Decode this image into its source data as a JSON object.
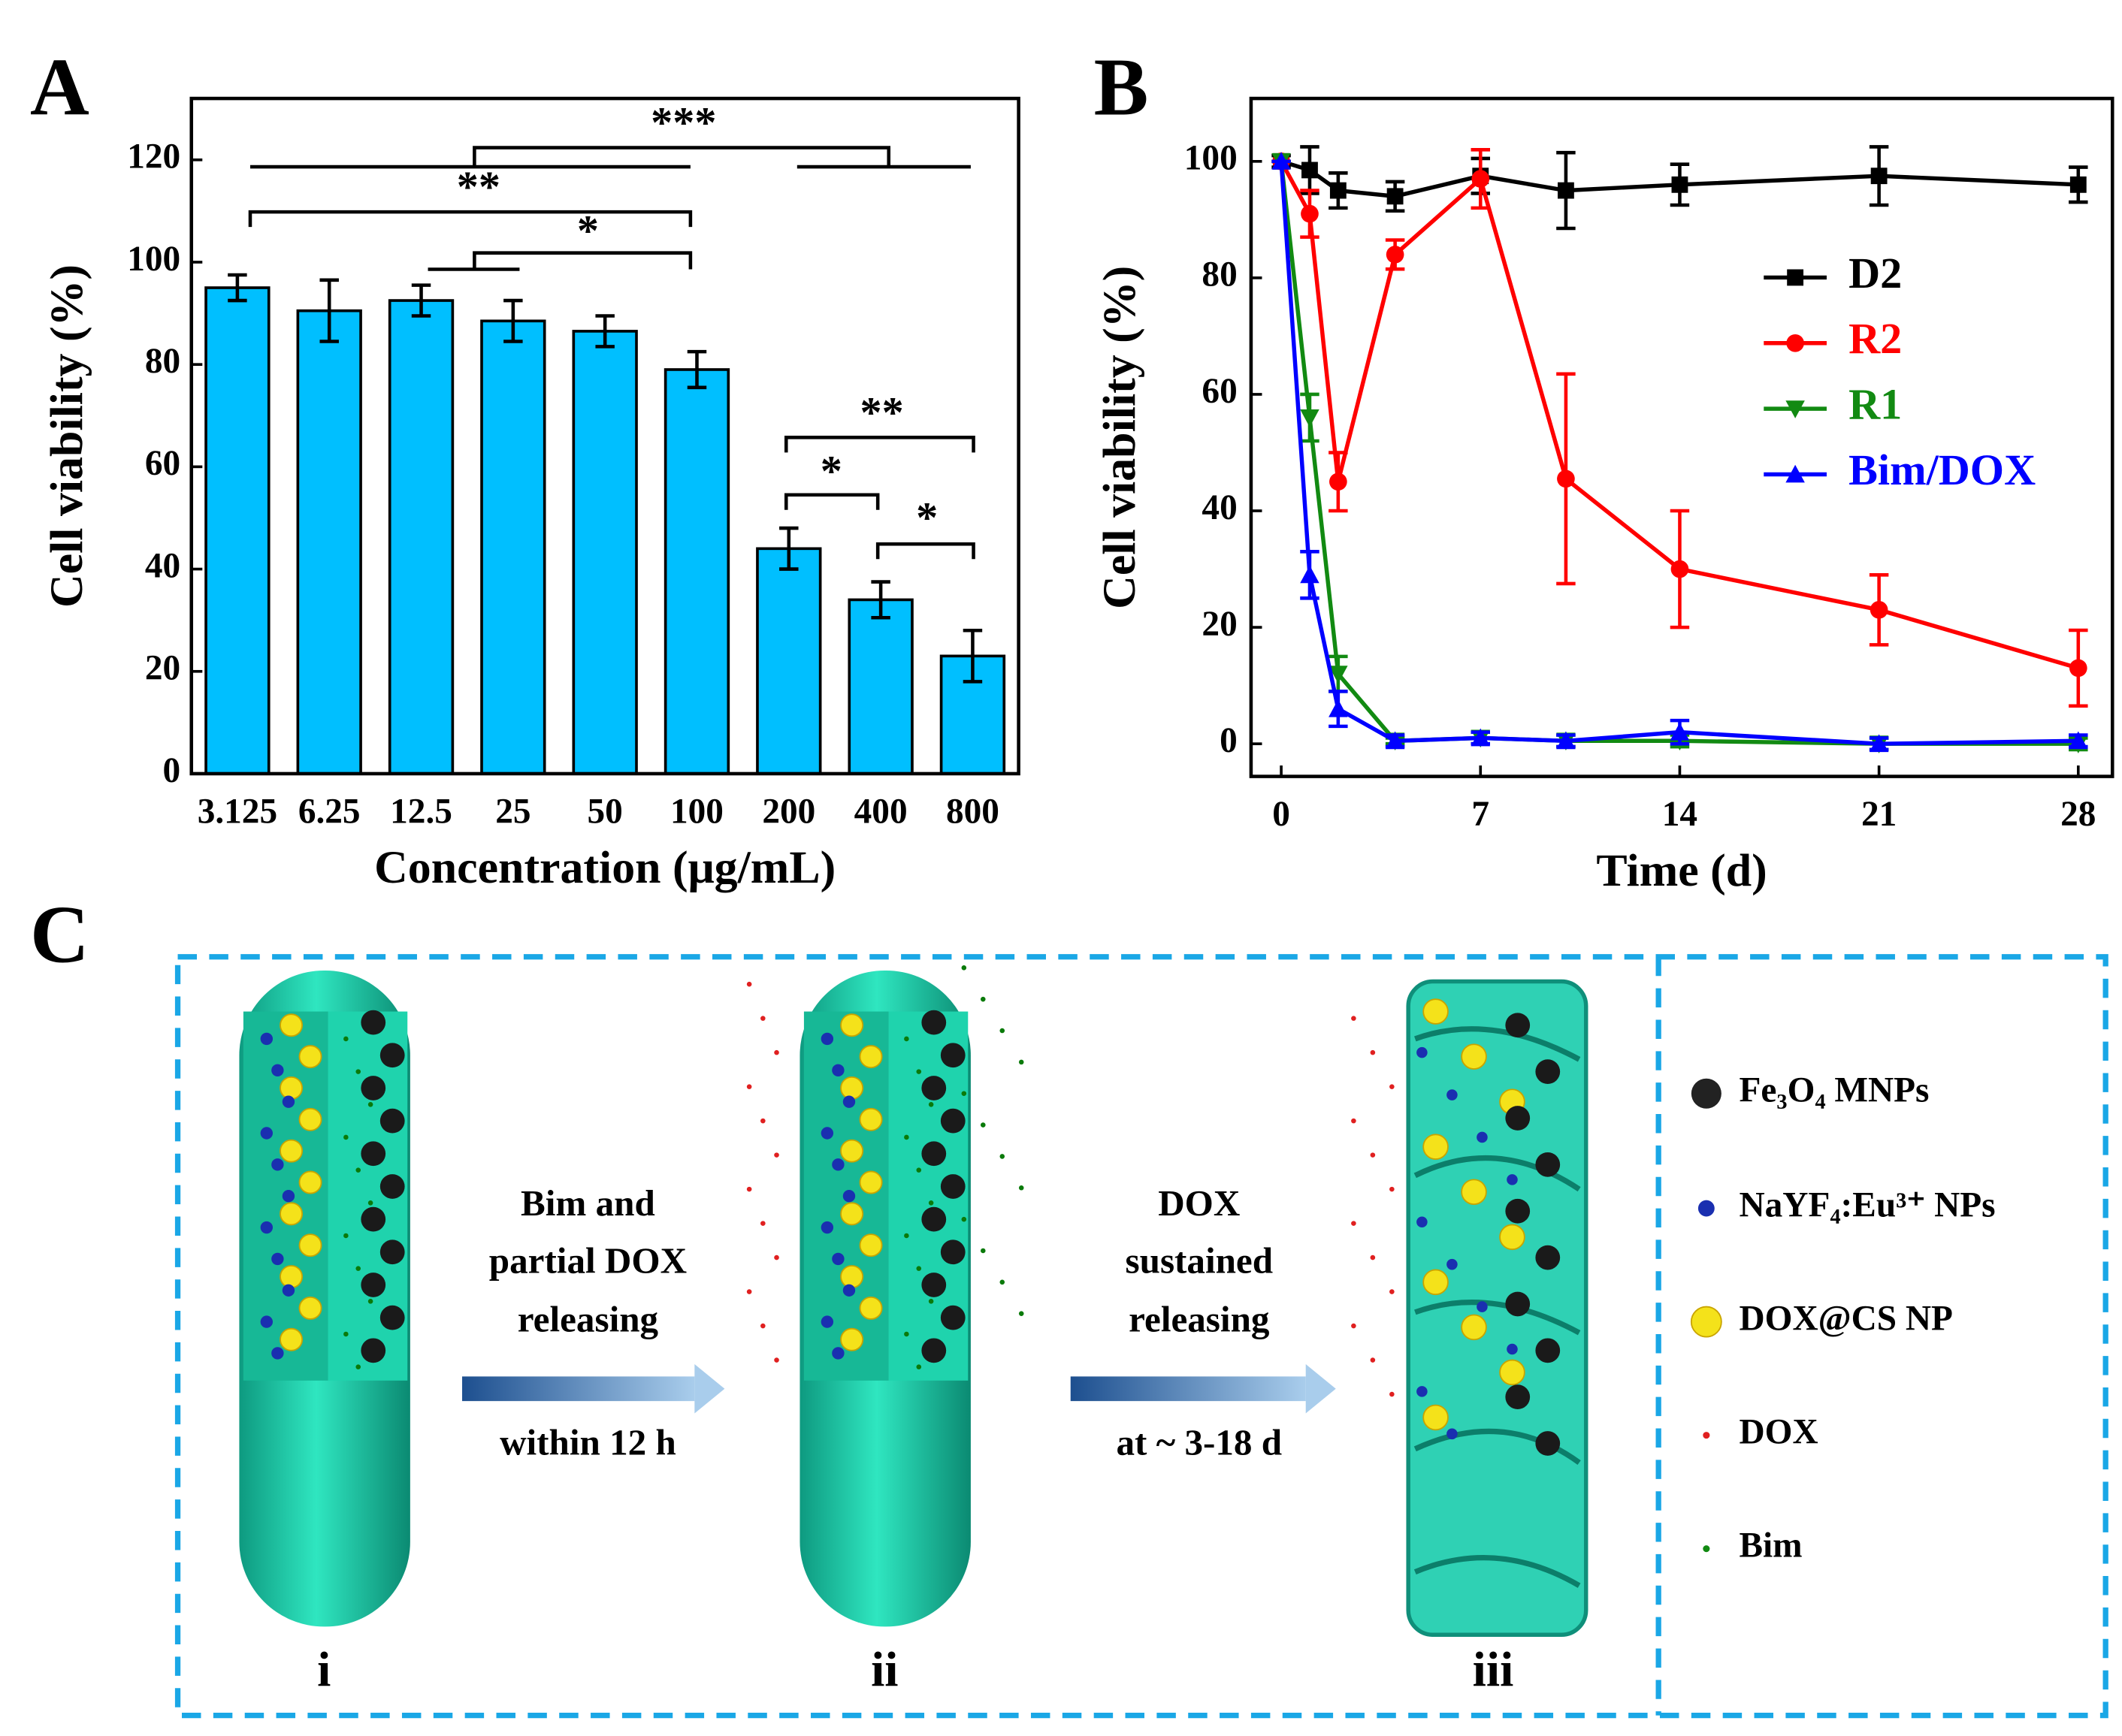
{
  "chart_data": [
    {
      "type": "bar",
      "panel_label": "A",
      "x_label": "Concentration (μg/mL)",
      "y_label": "Cell viability (%)",
      "categories": [
        "3.125",
        "6.25",
        "12.5",
        "25",
        "50",
        "100",
        "200",
        "400",
        "800"
      ],
      "values": [
        95,
        90.5,
        92.5,
        88.5,
        86.5,
        79,
        44,
        34,
        23
      ],
      "errors": [
        2.5,
        6,
        3,
        4,
        3,
        3.5,
        4,
        3.5,
        5
      ],
      "color": "#00bfff",
      "ylim": [
        0,
        132
      ],
      "yticks": [
        0,
        20,
        40,
        60,
        80,
        100,
        120
      ],
      "annotations": [
        "***",
        "**",
        "*",
        "**",
        "*",
        "*"
      ]
    },
    {
      "type": "line",
      "panel_label": "B",
      "x_label": "Time (d)",
      "y_label": "Cell viability (%)",
      "x": [
        0,
        1,
        2,
        4,
        7,
        10,
        14,
        21,
        28
      ],
      "xlim": [
        -1.06,
        29.2
      ],
      "xticks": [
        0,
        7,
        14,
        21,
        28
      ],
      "ylim": [
        -5.6,
        110.8
      ],
      "yticks": [
        0,
        20,
        40,
        60,
        80,
        100
      ],
      "series": [
        {
          "name": "D2",
          "color": "#000000",
          "marker": "square",
          "values": [
            100,
            98.5,
            95,
            94,
            97.5,
            95,
            96,
            97.5,
            96
          ],
          "errors": [
            1,
            4,
            3,
            2.5,
            3,
            6.5,
            3.5,
            5,
            3
          ]
        },
        {
          "name": "R2",
          "color": "#ff0000",
          "marker": "circle",
          "values": [
            100,
            91,
            45,
            84,
            97,
            45.5,
            30,
            23,
            13
          ],
          "errors": [
            0,
            4,
            5,
            2.5,
            5,
            18,
            10,
            6,
            6.5
          ]
        },
        {
          "name": "R1",
          "color": "#128a12",
          "marker": "triangle-down",
          "values": [
            100,
            56,
            12,
            0.5,
            1,
            0.5,
            0.5,
            0,
            0
          ],
          "errors": [
            0,
            4,
            3,
            0.5,
            1,
            1,
            1,
            1,
            1
          ]
        },
        {
          "name": "Bim/DOX",
          "color": "#0000ff",
          "marker": "triangle-up",
          "values": [
            100,
            29,
            6,
            0.5,
            1,
            0.5,
            2,
            0,
            0.5
          ],
          "errors": [
            0,
            4,
            3,
            1,
            1,
            1,
            2,
            1,
            1
          ]
        }
      ]
    }
  ],
  "diagram": {
    "panel_label": "C",
    "step1": {
      "lines": [
        "Bim and",
        "partial DOX",
        "releasing"
      ],
      "time": "within 12 h"
    },
    "step2": {
      "lines": [
        "DOX",
        "sustained",
        "releasing"
      ],
      "time": "at ~ 3-18 d"
    },
    "stages": [
      "i",
      "ii",
      "iii"
    ],
    "legend": [
      "Fe₃O₄ MNPs",
      "NaYF₄:Eu³⁺ NPs",
      "DOX@CS NP",
      "DOX",
      "Bim"
    ]
  }
}
